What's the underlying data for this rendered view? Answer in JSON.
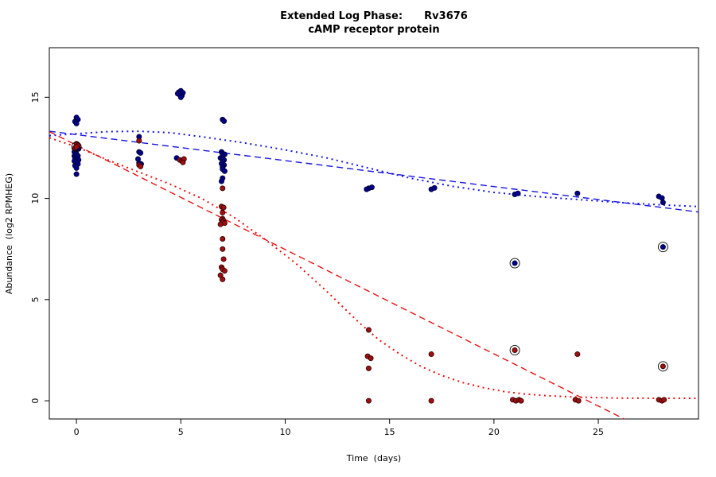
{
  "title": {
    "line1": "Extended Log Phase:      Rv3676",
    "line2": "cAMP receptor protein"
  },
  "axes": {
    "xlabel": "Time  (days)",
    "ylabel": "Abundance  (log2 RPMHEG)",
    "x_ticks": [
      0,
      5,
      10,
      15,
      20,
      25
    ],
    "y_ticks": [
      0,
      5,
      10,
      15
    ],
    "xlim": [
      -1.3,
      29.8
    ],
    "ylim": [
      -0.9,
      17.45
    ],
    "grid": false,
    "legend": "none"
  },
  "colors": {
    "point_blue": "#00008B",
    "point_blue_edge": "#000030",
    "point_red": "#9e1010",
    "point_red_edge": "#2a0000",
    "line_blue": "#1515e0",
    "line_red": "#e81010",
    "ring": "#000000",
    "axis": "#000000"
  },
  "chart_data": {
    "type": "scatter",
    "title": "Extended Log Phase: Rv3676 — cAMP receptor protein",
    "xlabel": "Time (days)",
    "ylabel": "Abundance (log2 RPMHEG)",
    "xlim": [
      -1.3,
      29.8
    ],
    "ylim": [
      -0.9,
      17.45
    ],
    "series": [
      {
        "name": "blue-samples",
        "kind": "points",
        "color": "#00008B",
        "points": [
          [
            -0.1,
            12.1
          ],
          [
            0,
            14.0
          ],
          [
            0.07,
            13.9
          ],
          [
            -0.07,
            13.8
          ],
          [
            0,
            13.7
          ],
          [
            0.1,
            12.45
          ],
          [
            -0.1,
            12.3
          ],
          [
            0,
            12.2
          ],
          [
            0.07,
            12.1
          ],
          [
            -0.07,
            12.0
          ],
          [
            0,
            11.95
          ],
          [
            0.1,
            11.9
          ],
          [
            -0.1,
            11.85
          ],
          [
            0,
            11.8
          ],
          [
            0.07,
            11.7
          ],
          [
            -0.07,
            11.62
          ],
          [
            0,
            11.5
          ],
          [
            0,
            11.2
          ],
          [
            3,
            13.05
          ],
          [
            3,
            12.3
          ],
          [
            3.07,
            12.25
          ],
          [
            2.95,
            11.95
          ],
          [
            3,
            11.75
          ],
          [
            3.1,
            11.7
          ],
          [
            4.9,
            15.25
          ],
          [
            5,
            15.32
          ],
          [
            5.1,
            15.22
          ],
          [
            4.95,
            15.12
          ],
          [
            5.05,
            15.08
          ],
          [
            5,
            15.0
          ],
          [
            4.85,
            15.18
          ],
          [
            4.8,
            12.0
          ],
          [
            7,
            13.9
          ],
          [
            7.07,
            13.82
          ],
          [
            6.95,
            12.3
          ],
          [
            7,
            12.22
          ],
          [
            7.1,
            12.18
          ],
          [
            7,
            12.1
          ],
          [
            6.9,
            12.0
          ],
          [
            7,
            11.95
          ],
          [
            7.07,
            11.9
          ],
          [
            7,
            11.8
          ],
          [
            6.95,
            11.72
          ],
          [
            7.07,
            11.65
          ],
          [
            7,
            11.55
          ],
          [
            7,
            11.45
          ],
          [
            7.1,
            11.35
          ],
          [
            7,
            11.0
          ],
          [
            6.95,
            10.85
          ],
          [
            14,
            10.5
          ],
          [
            14.15,
            10.55
          ],
          [
            13.9,
            10.45
          ],
          [
            17,
            10.45
          ],
          [
            17.15,
            10.52
          ],
          [
            21,
            10.2
          ],
          [
            21.15,
            10.25
          ],
          [
            24,
            10.25
          ],
          [
            27.9,
            10.1
          ],
          [
            28.05,
            10.02
          ],
          [
            28.1,
            9.8
          ]
        ]
      },
      {
        "name": "red-samples",
        "kind": "points",
        "color": "#9e1010",
        "points": [
          [
            0,
            12.7
          ],
          [
            0.07,
            12.62
          ],
          [
            -0.07,
            12.5
          ],
          [
            3,
            12.85
          ],
          [
            3,
            11.65
          ],
          [
            3.07,
            11.58
          ],
          [
            4.95,
            11.9
          ],
          [
            5.05,
            11.85
          ],
          [
            5.15,
            11.95
          ],
          [
            5.1,
            11.78
          ],
          [
            7,
            10.5
          ],
          [
            6.95,
            9.6
          ],
          [
            7.05,
            9.55
          ],
          [
            7,
            9.3
          ],
          [
            7,
            9.0
          ],
          [
            6.95,
            8.95
          ],
          [
            7.05,
            8.9
          ],
          [
            7,
            8.82
          ],
          [
            7.1,
            8.78
          ],
          [
            6.9,
            8.72
          ],
          [
            7,
            8.0
          ],
          [
            7,
            7.5
          ],
          [
            7.05,
            7.0
          ],
          [
            6.95,
            6.6
          ],
          [
            7,
            6.5
          ],
          [
            7.1,
            6.42
          ],
          [
            6.9,
            6.2
          ],
          [
            7,
            6.0
          ],
          [
            14,
            3.5
          ],
          [
            13.95,
            2.2
          ],
          [
            14.1,
            2.1
          ],
          [
            14,
            1.6
          ],
          [
            14,
            0.0
          ],
          [
            17,
            2.3
          ],
          [
            17,
            0.0
          ],
          [
            20.9,
            0.05
          ],
          [
            21.05,
            0.0
          ],
          [
            21.2,
            0.05
          ],
          [
            21.3,
            0.0
          ],
          [
            24,
            2.3
          ],
          [
            23.9,
            0.05
          ],
          [
            24.05,
            0.0
          ],
          [
            27.9,
            0.05
          ],
          [
            28.05,
            0.0
          ],
          [
            28.15,
            0.05
          ]
        ]
      },
      {
        "name": "circled-blue-samples",
        "kind": "circled-points",
        "color": "#00008B",
        "points": [
          [
            21,
            6.8
          ],
          [
            28.1,
            7.6
          ]
        ]
      },
      {
        "name": "circled-red-samples",
        "kind": "circled-points",
        "color": "#9e1010",
        "points": [
          [
            0,
            12.55
          ],
          [
            21,
            2.5
          ],
          [
            28.1,
            1.7
          ]
        ]
      },
      {
        "name": "blue-linear-fit",
        "kind": "line",
        "style": "dashed",
        "color": "#1515e0",
        "points": [
          [
            -1.3,
            13.32
          ],
          [
            29.8,
            9.33
          ]
        ]
      },
      {
        "name": "blue-loess-fit",
        "kind": "line",
        "style": "dotted",
        "color": "#1515e0",
        "points": [
          [
            -1.3,
            13.1
          ],
          [
            0,
            13.2
          ],
          [
            1.5,
            13.3
          ],
          [
            3,
            13.32
          ],
          [
            4.5,
            13.25
          ],
          [
            6,
            13.05
          ],
          [
            8,
            12.75
          ],
          [
            10,
            12.4
          ],
          [
            12,
            12.0
          ],
          [
            14,
            11.5
          ],
          [
            16,
            11.0
          ],
          [
            18,
            10.6
          ],
          [
            20,
            10.3
          ],
          [
            22,
            10.1
          ],
          [
            24,
            9.95
          ],
          [
            26,
            9.8
          ],
          [
            28,
            9.68
          ],
          [
            29.8,
            9.6
          ]
        ]
      },
      {
        "name": "red-linear-fit",
        "kind": "line",
        "style": "dashed",
        "color": "#e81010",
        "points": [
          [
            -1.3,
            13.3
          ],
          [
            26.3,
            -0.93
          ]
        ]
      },
      {
        "name": "red-loess-fit",
        "kind": "line",
        "style": "dotted",
        "color": "#e81010",
        "points": [
          [
            -1.3,
            13.0
          ],
          [
            0,
            12.55
          ],
          [
            1.5,
            11.9
          ],
          [
            3,
            11.3
          ],
          [
            4.5,
            10.7
          ],
          [
            6,
            10.0
          ],
          [
            7.5,
            9.1
          ],
          [
            9,
            8.0
          ],
          [
            10.5,
            6.8
          ],
          [
            12,
            5.4
          ],
          [
            13.5,
            3.9
          ],
          [
            14.5,
            3.0
          ],
          [
            15.5,
            2.3
          ],
          [
            16.5,
            1.7
          ],
          [
            17.5,
            1.25
          ],
          [
            18.5,
            0.9
          ],
          [
            19.5,
            0.65
          ],
          [
            20.5,
            0.45
          ],
          [
            21.5,
            0.33
          ],
          [
            22.5,
            0.25
          ],
          [
            24,
            0.18
          ],
          [
            26,
            0.13
          ],
          [
            28,
            0.12
          ],
          [
            29.8,
            0.12
          ]
        ]
      }
    ]
  }
}
